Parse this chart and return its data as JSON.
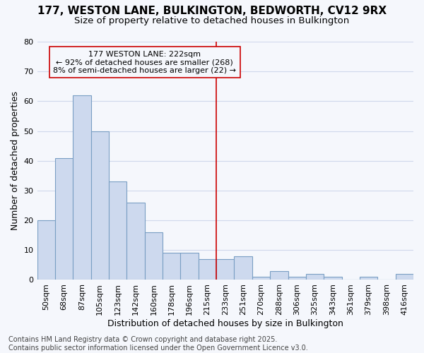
{
  "title1": "177, WESTON LANE, BULKINGTON, BEDWORTH, CV12 9RX",
  "title2": "Size of property relative to detached houses in Bulkington",
  "xlabel": "Distribution of detached houses by size in Bulkington",
  "ylabel": "Number of detached properties",
  "categories": [
    "50sqm",
    "68sqm",
    "87sqm",
    "105sqm",
    "123sqm",
    "142sqm",
    "160sqm",
    "178sqm",
    "196sqm",
    "215sqm",
    "233sqm",
    "251sqm",
    "270sqm",
    "288sqm",
    "306sqm",
    "325sqm",
    "343sqm",
    "361sqm",
    "379sqm",
    "398sqm",
    "416sqm"
  ],
  "values": [
    20,
    41,
    62,
    50,
    33,
    26,
    16,
    9,
    9,
    7,
    7,
    8,
    1,
    3,
    1,
    2,
    1,
    0,
    1,
    0,
    2
  ],
  "bar_color": "#cdd9ee",
  "bar_edge_color": "#7a9fc4",
  "vline_x": 9.5,
  "vline_color": "#cc0000",
  "annotation_text": "177 WESTON LANE: 222sqm\n← 92% of detached houses are smaller (268)\n8% of semi-detached houses are larger (22) →",
  "annotation_box_color": "#cc0000",
  "ylim": [
    0,
    80
  ],
  "yticks": [
    0,
    10,
    20,
    30,
    40,
    50,
    60,
    70,
    80
  ],
  "footnote": "Contains HM Land Registry data © Crown copyright and database right 2025.\nContains public sector information licensed under the Open Government Licence v3.0.",
  "bg_color": "#f5f7fc",
  "grid_color": "#d0d8ec",
  "title_fontsize": 11,
  "subtitle_fontsize": 9.5,
  "axis_label_fontsize": 9,
  "tick_fontsize": 8,
  "annotation_fontsize": 8,
  "footnote_fontsize": 7
}
